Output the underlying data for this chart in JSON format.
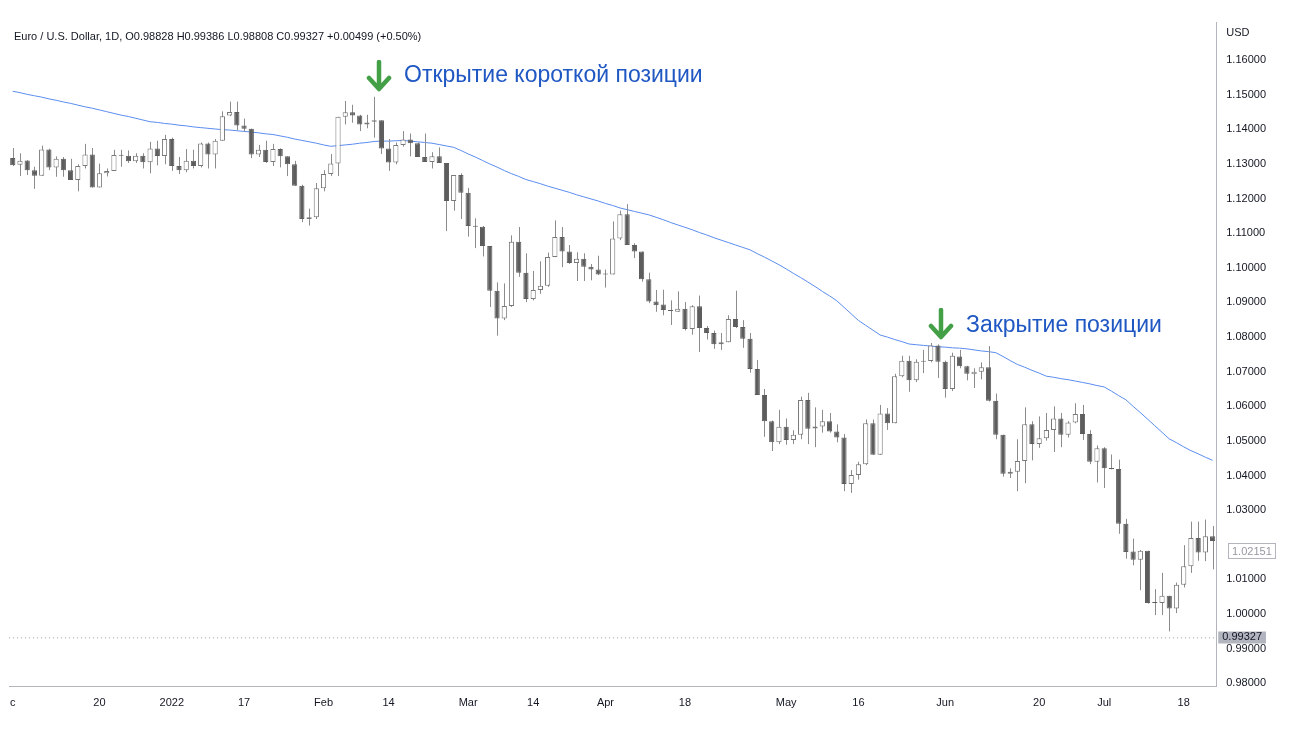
{
  "chart_data": {
    "type": "candlestick",
    "title": "Euro / U.S. Dollar, 1D, O0.98828 H0.99386 L0.98808 C0.99327 +0.00499 (+0.50%)",
    "ylabel": "USD",
    "categories": [
      "c",
      null,
      null,
      null,
      null,
      null,
      null,
      null,
      null,
      null,
      null,
      null,
      "20",
      null,
      null,
      null,
      null,
      null,
      null,
      null,
      null,
      null,
      "2022",
      null,
      null,
      null,
      null,
      null,
      null,
      null,
      null,
      null,
      "17",
      null,
      null,
      null,
      null,
      null,
      null,
      null,
      null,
      null,
      null,
      "Feb",
      null,
      null,
      null,
      null,
      null,
      null,
      null,
      null,
      "14",
      null,
      null,
      null,
      null,
      null,
      null,
      null,
      null,
      null,
      null,
      "Mar",
      null,
      null,
      null,
      null,
      null,
      null,
      null,
      null,
      "14",
      null,
      null,
      null,
      null,
      null,
      null,
      null,
      null,
      null,
      "Apr",
      null,
      null,
      null,
      null,
      null,
      null,
      null,
      null,
      null,
      null,
      "18",
      null,
      null,
      null,
      null,
      null,
      null,
      null,
      null,
      null,
      null,
      null,
      null,
      null,
      "May",
      null,
      null,
      null,
      null,
      null,
      null,
      null,
      null,
      null,
      "16",
      null,
      null,
      null,
      null,
      null,
      null,
      null,
      null,
      null,
      null,
      null,
      "Jun",
      null,
      null,
      null,
      null,
      null,
      null,
      null,
      null,
      null,
      null,
      null,
      null,
      "20",
      null,
      null,
      null,
      null,
      null,
      null,
      null,
      null,
      "Jul",
      null,
      null,
      null,
      null,
      null,
      null,
      null,
      null,
      null,
      null,
      "18",
      null,
      null,
      null,
      null
    ],
    "ohlc": [
      [
        1.1317,
        1.1346,
        1.1294,
        1.1296
      ],
      [
        1.1298,
        1.1331,
        1.1265,
        1.1309
      ],
      [
        1.131,
        1.1311,
        1.1268,
        1.1282
      ],
      [
        1.1282,
        1.1292,
        1.1228,
        1.1266
      ],
      [
        1.1266,
        1.1353,
        1.1266,
        1.1342
      ],
      [
        1.1342,
        1.1344,
        1.1282,
        1.129
      ],
      [
        1.129,
        1.1322,
        1.1263,
        1.1315
      ],
      [
        1.1315,
        1.132,
        1.1263,
        1.1282
      ],
      [
        1.1282,
        1.1315,
        1.1254,
        1.1254
      ],
      [
        1.1254,
        1.1299,
        1.1221,
        1.1294
      ],
      [
        1.1294,
        1.1358,
        1.1287,
        1.1327
      ],
      [
        1.1327,
        1.1346,
        1.1232,
        1.1232
      ],
      [
        1.1232,
        1.1301,
        1.1232,
        1.1273
      ],
      [
        1.1273,
        1.1287,
        1.1264,
        1.128
      ],
      [
        1.128,
        1.1341,
        1.128,
        1.1326
      ],
      [
        1.1326,
        1.1341,
        1.1292,
        1.1324
      ],
      [
        1.1324,
        1.1339,
        1.1303,
        1.1308
      ],
      [
        1.1308,
        1.1331,
        1.1303,
        1.1324
      ],
      [
        1.1324,
        1.1331,
        1.1287,
        1.1305
      ],
      [
        1.1305,
        1.1364,
        1.1273,
        1.1345
      ],
      [
        1.1345,
        1.1367,
        1.1296,
        1.1323
      ],
      [
        1.1323,
        1.1384,
        1.1299,
        1.1372
      ],
      [
        1.1372,
        1.1376,
        1.128,
        1.1294
      ],
      [
        1.1294,
        1.132,
        1.1271,
        1.1282
      ],
      [
        1.1282,
        1.1343,
        1.1276,
        1.1309
      ],
      [
        1.1309,
        1.1341,
        1.1287,
        1.1294
      ],
      [
        1.1294,
        1.1362,
        1.129,
        1.1359
      ],
      [
        1.1359,
        1.1362,
        1.1287,
        1.1327
      ],
      [
        1.1327,
        1.1372,
        1.1287,
        1.1367
      ],
      [
        1.1367,
        1.1452,
        1.1367,
        1.1438
      ],
      [
        1.144,
        1.148,
        1.1438,
        1.145
      ],
      [
        1.145,
        1.148,
        1.1397,
        1.1411
      ],
      [
        1.1411,
        1.1431,
        1.1393,
        1.1402
      ],
      [
        1.1402,
        1.1402,
        1.1317,
        1.1327
      ],
      [
        1.1327,
        1.1355,
        1.132,
        1.1341
      ],
      [
        1.1341,
        1.1367,
        1.1303,
        1.1306
      ],
      [
        1.1306,
        1.1358,
        1.1294,
        1.1343
      ],
      [
        1.1343,
        1.1345,
        1.129,
        1.1322
      ],
      [
        1.1322,
        1.1322,
        1.1265,
        1.1299
      ],
      [
        1.1299,
        1.1309,
        1.1237,
        1.1237
      ],
      [
        1.1237,
        1.124,
        1.1132,
        1.1141
      ],
      [
        1.1141,
        1.1171,
        1.1122,
        1.1146
      ],
      [
        1.1146,
        1.1245,
        1.1141,
        1.123
      ],
      [
        1.123,
        1.1282,
        1.1221,
        1.1271
      ],
      [
        1.1271,
        1.1329,
        1.1265,
        1.1301
      ],
      [
        1.1301,
        1.1436,
        1.1265,
        1.1436
      ],
      [
        1.1436,
        1.1482,
        1.1414,
        1.1449
      ],
      [
        1.1449,
        1.1471,
        1.1419,
        1.144
      ],
      [
        1.144,
        1.1442,
        1.1395,
        1.1414
      ],
      [
        1.1414,
        1.1442,
        1.1403,
        1.142
      ],
      [
        1.1422,
        1.1494,
        1.1376,
        1.1426
      ],
      [
        1.1426,
        1.1426,
        1.1329,
        1.1345
      ],
      [
        1.1345,
        1.1372,
        1.128,
        1.1304
      ],
      [
        1.1304,
        1.1362,
        1.1299,
        1.1355
      ],
      [
        1.1355,
        1.1395,
        1.135,
        1.1371
      ],
      [
        1.1371,
        1.1388,
        1.1322,
        1.136
      ],
      [
        1.136,
        1.1362,
        1.132,
        1.132
      ],
      [
        1.132,
        1.1388,
        1.1306,
        1.1306
      ],
      [
        1.1306,
        1.1334,
        1.1287,
        1.1322
      ],
      [
        1.1322,
        1.1348,
        1.1303,
        1.1303
      ],
      [
        1.1303,
        1.1303,
        1.1106,
        1.1193
      ],
      [
        1.1193,
        1.1268,
        1.1165,
        1.1268
      ],
      [
        1.1268,
        1.1273,
        1.1141,
        1.1217
      ],
      [
        1.1217,
        1.1231,
        1.109,
        1.1121
      ],
      [
        1.1121,
        1.1143,
        1.1057,
        1.1119
      ],
      [
        1.1119,
        1.1121,
        1.1033,
        1.1063
      ],
      [
        1.1063,
        1.1063,
        1.0887,
        1.0934
      ],
      [
        1.0934,
        1.0958,
        1.0804,
        1.0854
      ],
      [
        1.0854,
        1.0955,
        1.0849,
        1.089
      ],
      [
        1.089,
        1.1094,
        1.0887,
        1.1075
      ],
      [
        1.1075,
        1.1118,
        1.0974,
        1.0986
      ],
      [
        1.0986,
        1.1042,
        1.0901,
        1.091
      ],
      [
        1.091,
        1.0991,
        1.0906,
        1.0936
      ],
      [
        1.0936,
        1.1019,
        1.0925,
        1.0948
      ],
      [
        1.0948,
        1.1044,
        1.0945,
        1.1031
      ],
      [
        1.1031,
        1.1137,
        1.1031,
        1.1089
      ],
      [
        1.1089,
        1.1118,
        1.1002,
        1.1047
      ],
      [
        1.1047,
        1.1066,
        1.1011,
        1.1014
      ],
      [
        1.1014,
        1.1045,
        1.0962,
        1.1026
      ],
      [
        1.1026,
        1.1042,
        1.0962,
        1.1003
      ],
      [
        1.1003,
        1.1011,
        1.0964,
        1.0995
      ],
      [
        1.0995,
        1.1035,
        1.0979,
        1.0981
      ],
      [
        1.0983,
        1.0995,
        1.0943,
        1.0981
      ],
      [
        1.0981,
        1.1134,
        1.0981,
        1.1085
      ],
      [
        1.1085,
        1.1165,
        1.108,
        1.1155
      ],
      [
        1.1155,
        1.1184,
        1.1066,
        1.1066
      ],
      [
        1.1066,
        1.1071,
        1.1028,
        1.1047
      ],
      [
        1.1047,
        1.1047,
        1.096,
        1.0967
      ],
      [
        1.0967,
        1.0986,
        1.0898,
        1.0903
      ],
      [
        1.0903,
        1.0936,
        1.0873,
        1.0892
      ],
      [
        1.0894,
        1.0937,
        1.0863,
        1.0878
      ],
      [
        1.0877,
        1.0906,
        1.0835,
        1.0875
      ],
      [
        1.0873,
        1.0932,
        1.0873,
        1.0882
      ],
      [
        1.0882,
        1.0901,
        1.0819,
        1.0823
      ],
      [
        1.0823,
        1.0892,
        1.0807,
        1.0889
      ],
      [
        1.0889,
        1.092,
        1.0757,
        1.0826
      ],
      [
        1.0826,
        1.0832,
        1.0793,
        1.0812
      ],
      [
        1.0812,
        1.0819,
        1.0766,
        1.0779
      ],
      [
        1.0779,
        1.0812,
        1.0763,
        1.0785
      ],
      [
        1.0785,
        1.0863,
        1.0785,
        1.0852
      ],
      [
        1.0852,
        1.0934,
        1.0826,
        1.0829
      ],
      [
        1.0829,
        1.0849,
        1.0769,
        1.0795
      ],
      [
        1.0795,
        1.0812,
        1.0697,
        1.0708
      ],
      [
        1.0708,
        1.0734,
        1.0633,
        1.0633
      ],
      [
        1.0633,
        1.065,
        1.0512,
        1.0557
      ],
      [
        1.0557,
        1.0559,
        1.0471,
        1.0496
      ],
      [
        1.0496,
        1.059,
        1.0491,
        1.0541
      ],
      [
        1.0541,
        1.0565,
        1.0489,
        1.0503
      ],
      [
        1.0503,
        1.0531,
        1.0491,
        1.0518
      ],
      [
        1.0518,
        1.0628,
        1.0505,
        1.0618
      ],
      [
        1.0618,
        1.0639,
        1.0491,
        1.0535
      ],
      [
        1.0536,
        1.0597,
        1.0482,
        1.0542
      ],
      [
        1.0542,
        1.059,
        1.0524,
        1.0557
      ],
      [
        1.0557,
        1.0581,
        1.0524,
        1.0527
      ],
      [
        1.0527,
        1.0548,
        1.0496,
        1.051
      ],
      [
        1.051,
        1.052,
        1.0355,
        1.0376
      ],
      [
        1.0376,
        1.0416,
        1.035,
        1.0402
      ],
      [
        1.0402,
        1.044,
        1.0388,
        1.0433
      ],
      [
        1.0433,
        1.0562,
        1.043,
        1.0551
      ],
      [
        1.0551,
        1.0562,
        1.046,
        1.046
      ],
      [
        1.046,
        1.0604,
        1.046,
        1.0579
      ],
      [
        1.0579,
        1.0595,
        1.0532,
        1.0551
      ],
      [
        1.0551,
        1.0694,
        1.0551,
        1.0687
      ],
      [
        1.0687,
        1.0746,
        1.0684,
        1.0732
      ],
      [
        1.0732,
        1.0746,
        1.0642,
        1.0675
      ],
      [
        1.0675,
        1.0736,
        1.067,
        1.0729
      ],
      [
        1.0729,
        1.0763,
        1.0696,
        1.0731
      ],
      [
        1.0731,
        1.0783,
        1.0727,
        1.0776
      ],
      [
        1.0776,
        1.0779,
        1.0682,
        1.0729
      ],
      [
        1.0729,
        1.0732,
        1.0625,
        1.065
      ],
      [
        1.065,
        1.0755,
        1.0644,
        1.0746
      ],
      [
        1.0744,
        1.0763,
        1.071,
        1.0716
      ],
      [
        1.0716,
        1.0717,
        1.0675,
        1.0694
      ],
      [
        1.0693,
        1.071,
        1.0653,
        1.07
      ],
      [
        1.07,
        1.0727,
        1.0678,
        1.0713
      ],
      [
        1.0713,
        1.0774,
        1.0614,
        1.0616
      ],
      [
        1.0616,
        1.0637,
        1.0505,
        1.0518
      ],
      [
        1.0518,
        1.0518,
        1.0397,
        1.0405
      ],
      [
        1.0405,
        1.0421,
        1.0393,
        1.0411
      ],
      [
        1.0411,
        1.0505,
        1.0355,
        1.0442
      ],
      [
        1.0442,
        1.0597,
        1.0378,
        1.0548
      ],
      [
        1.0548,
        1.0557,
        1.0444,
        1.0491
      ],
      [
        1.0491,
        1.0571,
        1.048,
        1.0508
      ],
      [
        1.0508,
        1.0581,
        1.0501,
        1.0532
      ],
      [
        1.0532,
        1.06,
        1.0468,
        1.0565
      ],
      [
        1.0565,
        1.0581,
        1.0482,
        1.0518
      ],
      [
        1.0518,
        1.0557,
        1.051,
        1.0553
      ],
      [
        1.0553,
        1.0609,
        1.0551,
        1.0578
      ],
      [
        1.0578,
        1.0604,
        1.0503,
        1.052
      ],
      [
        1.052,
        1.0531,
        1.0433,
        1.044
      ],
      [
        1.044,
        1.0487,
        1.038,
        1.0479
      ],
      [
        1.0479,
        1.0482,
        1.0364,
        1.0421
      ],
      [
        1.0421,
        1.0461,
        1.0418,
        1.0419
      ],
      [
        1.0419,
        1.0446,
        1.0232,
        1.0261
      ],
      [
        1.0261,
        1.0275,
        1.016,
        1.0179
      ],
      [
        1.0181,
        1.0218,
        1.0141,
        1.0157
      ],
      [
        1.0157,
        1.0185,
        1.0069,
        1.0183
      ],
      [
        1.0183,
        1.0183,
        1.003,
        1.0032
      ],
      [
        1.0034,
        1.0072,
        0.9997,
        1.0032
      ],
      [
        1.0032,
        1.0119,
        0.9997,
        1.0053
      ],
      [
        1.0053,
        1.0053,
        0.995,
        1.0016
      ],
      [
        1.0016,
        1.0091,
        1.0003,
        1.0085
      ],
      [
        1.0085,
        1.0199,
        1.0077,
        1.0138
      ],
      [
        1.0138,
        1.0267,
        1.0119,
        1.022
      ],
      [
        1.022,
        1.0267,
        1.0154,
        1.0178
      ],
      [
        1.0178,
        1.0273,
        1.0153,
        1.0225
      ],
      [
        1.0225,
        1.0254,
        1.0129,
        1.0211
      ]
    ],
    "series": [
      {
        "type": "line",
        "color": "#5b8def",
        "values": [
          1.151,
          1.1506,
          1.1501,
          1.1497,
          1.1493,
          1.1488,
          1.1484,
          1.1479,
          1.1475,
          1.147,
          1.1465,
          1.1461,
          1.1456,
          1.1451,
          1.1446,
          1.1441,
          1.1437,
          1.1432,
          1.1427,
          1.1422,
          1.142,
          1.1417,
          1.1415,
          1.1412,
          1.141,
          1.1407,
          1.1405,
          1.1403,
          1.1401,
          1.1399,
          1.1398,
          1.1396,
          1.1394,
          1.1392,
          1.139,
          1.1387,
          1.1385,
          1.1381,
          1.1377,
          1.1372,
          1.1368,
          1.1364,
          1.136,
          1.1355,
          1.1351,
          1.1353,
          1.1355,
          1.1357,
          1.136,
          1.1362,
          1.1365,
          1.1366,
          1.1366,
          1.1367,
          1.1368,
          1.1366,
          1.1364,
          1.1362,
          1.136,
          1.1356,
          1.1352,
          1.1348,
          1.1339,
          1.1329,
          1.132,
          1.131,
          1.13,
          1.1291,
          1.1281,
          1.1272,
          1.1264,
          1.1255,
          1.1249,
          1.1243,
          1.1236,
          1.123,
          1.1224,
          1.1218,
          1.1211,
          1.1205,
          1.1199,
          1.1193,
          1.1186,
          1.118,
          1.1173,
          1.1168,
          1.1163,
          1.1158,
          1.1153,
          1.1146,
          1.1139,
          1.1131,
          1.1124,
          1.1117,
          1.111,
          1.1102,
          1.1095,
          1.1087,
          1.108,
          1.1073,
          1.1066,
          1.1059,
          1.1052,
          1.1041,
          1.1031,
          1.102,
          1.1009,
          1.0997,
          1.0984,
          1.0972,
          1.0959,
          1.0946,
          1.0932,
          1.0919,
          1.0905,
          1.0886,
          1.0867,
          1.0848,
          1.0834,
          1.082,
          1.0806,
          1.08,
          1.0793,
          1.0787,
          1.078,
          1.0778,
          1.0776,
          1.0774,
          1.0772,
          1.0771,
          1.0769,
          1.0768,
          1.0766,
          1.0763,
          1.076,
          1.0758,
          1.0755,
          1.0744,
          1.0732,
          1.0721,
          1.0713,
          1.0704,
          1.0696,
          1.0687,
          1.0684,
          1.068,
          1.0677,
          1.0673,
          1.0669,
          1.0665,
          1.066,
          1.0656,
          1.0644,
          1.0631,
          1.0619,
          1.06,
          1.0582,
          1.0563,
          1.0544,
          1.0525,
          1.0506,
          1.0495,
          1.0483,
          1.0472,
          1.0463,
          1.0453,
          1.0444
        ]
      }
    ],
    "ylim": [
      0.979,
      1.171
    ],
    "yticks": [
      {
        "value": 0.98,
        "label": "0.98000"
      },
      {
        "value": 0.99,
        "label": "0.99000"
      },
      {
        "value": 1.0,
        "label": "1.00000"
      },
      {
        "value": 1.01,
        "label": "1.01000"
      },
      {
        "value": 1.03,
        "label": "1.03000"
      },
      {
        "value": 1.04,
        "label": "1.04000"
      },
      {
        "value": 1.05,
        "label": "1.05000"
      },
      {
        "value": 1.06,
        "label": "1.06000"
      },
      {
        "value": 1.07,
        "label": "1.07000"
      },
      {
        "value": 1.08,
        "label": "1.08000"
      },
      {
        "value": 1.09,
        "label": "1.09000"
      },
      {
        "value": 1.1,
        "label": "1.10000"
      },
      {
        "value": 1.11,
        "label": "1.11000"
      },
      {
        "value": 1.12,
        "label": "1.12000"
      },
      {
        "value": 1.13,
        "label": "1.13000"
      },
      {
        "value": 1.14,
        "label": "1.14000"
      },
      {
        "value": 1.15,
        "label": "1.15000"
      },
      {
        "value": 1.16,
        "label": "1.16000"
      }
    ],
    "ref_lines": [
      {
        "axis": "y",
        "value": 0.99327,
        "label": "0.99327",
        "color": "#9598a1",
        "line_style": "dotted"
      }
    ],
    "annotations": [
      "Открытие короткой позиции",
      "Закрытие позиции",
      "1.02151"
    ]
  }
}
